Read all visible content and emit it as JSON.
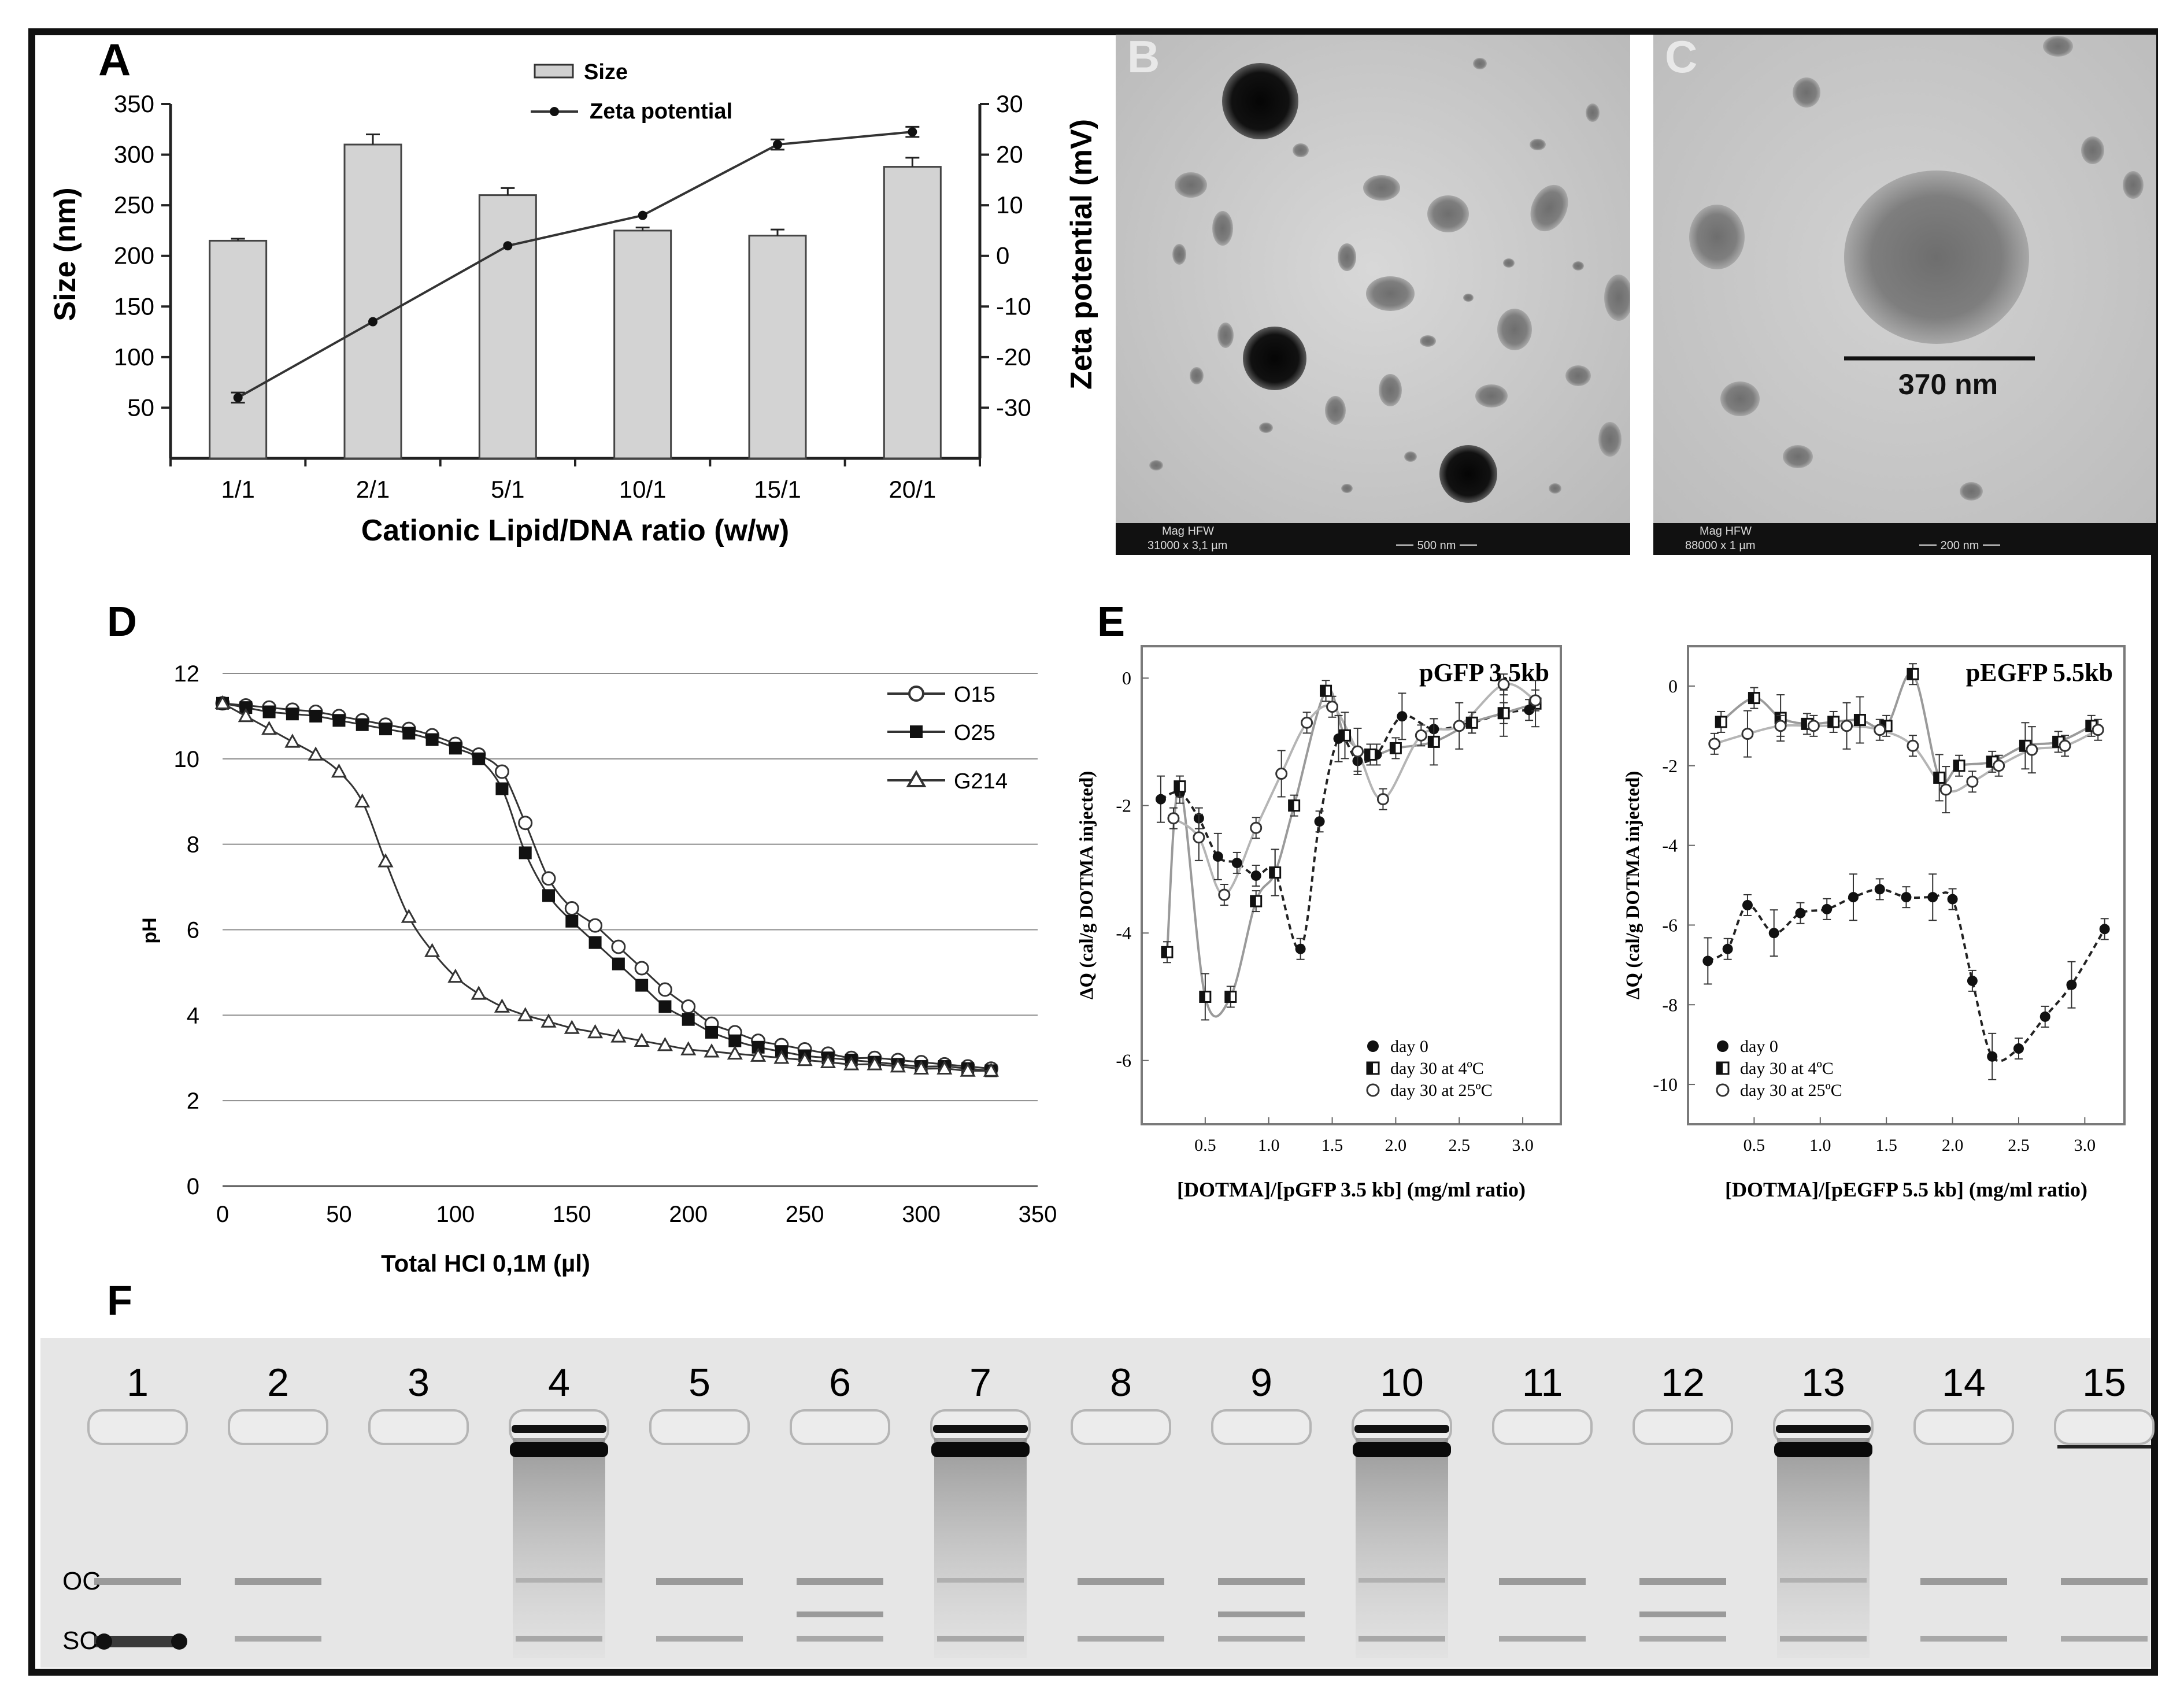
{
  "panel_letters": {
    "a": "A",
    "b": "B",
    "c": "C",
    "d": "D",
    "e": "E",
    "f": "F"
  },
  "chart_data": [
    {
      "id": "A",
      "type": "bar+line",
      "title": "",
      "categories": [
        "1/1",
        "2/1",
        "5/1",
        "10/1",
        "15/1",
        "20/1"
      ],
      "series": [
        {
          "name": "Size",
          "kind": "bar",
          "axis": "left",
          "values": [
            215,
            310,
            260,
            225,
            220,
            288
          ],
          "errors": [
            2,
            10,
            7,
            3,
            6,
            9
          ]
        },
        {
          "name": "Zeta potential",
          "kind": "line",
          "axis": "right",
          "values": [
            -28,
            -13,
            2,
            8,
            22,
            24.5
          ],
          "errors": [
            1,
            0,
            0,
            0,
            1,
            1
          ]
        }
      ],
      "xlabel": "Cationic Lipid/DNA ratio (w/w)",
      "ylabel": "Size (nm)",
      "y2label": "Zeta potential (mV)",
      "ylim": [
        0,
        350
      ],
      "y_ticks": [
        "50",
        "100",
        "150",
        "200",
        "250",
        "300",
        "350"
      ],
      "y2lim": [
        -40,
        30
      ],
      "y2_ticks": [
        "30",
        "20",
        "10",
        "0",
        "-10",
        "-20",
        "-30"
      ],
      "legend": [
        "Size",
        "Zeta potential"
      ]
    },
    {
      "id": "D",
      "type": "line",
      "xlabel": "Total HCl 0,1M (µl)",
      "ylabel": "pH",
      "xlim": [
        0,
        350
      ],
      "ylim": [
        0,
        12
      ],
      "x_ticks": [
        "0",
        "50",
        "100",
        "150",
        "200",
        "250",
        "300",
        "350"
      ],
      "y_ticks": [
        "0",
        "2",
        "4",
        "6",
        "8",
        "10",
        "12"
      ],
      "grid": true,
      "legend_position": "top-right",
      "x": [
        0,
        10,
        20,
        30,
        40,
        50,
        60,
        70,
        80,
        90,
        100,
        110,
        120,
        130,
        140,
        150,
        160,
        170,
        180,
        190,
        200,
        210,
        220,
        230,
        240,
        250,
        260,
        270,
        280,
        290,
        300,
        310,
        320,
        330
      ],
      "series": [
        {
          "name": "O15",
          "marker": "open-circle",
          "values": [
            11.3,
            11.25,
            11.2,
            11.15,
            11.1,
            11.0,
            10.9,
            10.8,
            10.7,
            10.55,
            10.35,
            10.1,
            9.7,
            8.5,
            7.2,
            6.5,
            6.1,
            5.6,
            5.1,
            4.6,
            4.2,
            3.8,
            3.6,
            3.4,
            3.3,
            3.2,
            3.1,
            3.0,
            3.0,
            2.95,
            2.9,
            2.85,
            2.8,
            2.75
          ]
        },
        {
          "name": "O25",
          "marker": "filled-square",
          "values": [
            11.3,
            11.2,
            11.1,
            11.05,
            11.0,
            10.9,
            10.8,
            10.7,
            10.6,
            10.45,
            10.25,
            10.0,
            9.3,
            7.8,
            6.8,
            6.2,
            5.7,
            5.2,
            4.7,
            4.2,
            3.9,
            3.6,
            3.4,
            3.25,
            3.15,
            3.05,
            3.0,
            2.95,
            2.9,
            2.85,
            2.8,
            2.8,
            2.75,
            2.7
          ]
        },
        {
          "name": "G214",
          "marker": "open-triangle",
          "values": [
            11.3,
            11.0,
            10.7,
            10.4,
            10.1,
            9.7,
            9.0,
            7.6,
            6.3,
            5.5,
            4.9,
            4.5,
            4.2,
            4.0,
            3.85,
            3.7,
            3.6,
            3.5,
            3.4,
            3.3,
            3.2,
            3.15,
            3.1,
            3.05,
            3.0,
            2.95,
            2.9,
            2.85,
            2.85,
            2.8,
            2.75,
            2.75,
            2.7,
            2.7
          ]
        }
      ]
    },
    {
      "id": "E1",
      "type": "scatter",
      "title": "pGFP 3.5kb",
      "xlabel": "[DOTMA]/[pGFP 3.5 kb] (mg/ml ratio)",
      "ylabel": "ΔQ  (cal/g DOTMA injected)",
      "xlim": [
        0,
        3.3
      ],
      "ylim": [
        -7,
        0.5
      ],
      "x_ticks": [
        "0.5",
        "1.0",
        "1.5",
        "2.0",
        "2.5",
        "3.0"
      ],
      "y_ticks": [
        "0",
        "-2",
        "-4",
        "-6"
      ],
      "legend": [
        "day 0",
        "day 30  at 4ºC",
        "day 30  at 25ºC"
      ],
      "series": [
        {
          "name": "day 0",
          "marker": "filled-circle",
          "x": [
            0.15,
            0.3,
            0.45,
            0.6,
            0.75,
            0.9,
            1.05,
            1.25,
            1.4,
            1.55,
            1.7,
            1.85,
            2.05,
            2.3,
            2.6,
            2.85,
            3.05
          ],
          "y": [
            -1.9,
            -1.8,
            -2.2,
            -2.8,
            -2.9,
            -3.1,
            -3.05,
            -4.25,
            -2.25,
            -0.95,
            -1.3,
            -1.2,
            -0.6,
            -0.8,
            -0.7,
            -0.55,
            -0.5
          ]
        },
        {
          "name": "day 30  at 4ºC",
          "marker": "half-square",
          "x": [
            0.2,
            0.3,
            0.5,
            0.7,
            0.9,
            1.05,
            1.2,
            1.45,
            1.6,
            1.8,
            2.0,
            2.3,
            2.6,
            2.85,
            3.1
          ],
          "y": [
            -4.3,
            -1.7,
            -5.0,
            -5.0,
            -3.5,
            -3.05,
            -2.0,
            -0.2,
            -0.9,
            -1.2,
            -1.1,
            -1.0,
            -0.7,
            -0.55,
            -0.4
          ]
        },
        {
          "name": "day 30  at 25ºC",
          "marker": "open-circle",
          "x": [
            0.25,
            0.45,
            0.65,
            0.9,
            1.1,
            1.3,
            1.5,
            1.7,
            1.9,
            2.2,
            2.5,
            2.85,
            3.1
          ],
          "y": [
            -2.2,
            -2.5,
            -3.4,
            -2.35,
            -1.5,
            -0.7,
            -0.45,
            -1.15,
            -1.9,
            -0.9,
            -0.75,
            -0.1,
            -0.35
          ]
        }
      ]
    },
    {
      "id": "E2",
      "type": "scatter",
      "title": "pEGFP 5.5kb",
      "xlabel": "[DOTMA]/[pEGFP 5.5 kb] (mg/ml ratio)",
      "ylabel": "ΔQ  (cal/g DOTMA injected)",
      "xlim": [
        0,
        3.3
      ],
      "ylim": [
        -11,
        1
      ],
      "x_ticks": [
        "0.5",
        "1.0",
        "1.5",
        "2.0",
        "2.5",
        "3.0"
      ],
      "y_ticks": [
        "0",
        "-2",
        "-4",
        "-6",
        "-8",
        "-10"
      ],
      "legend": [
        "day 0",
        "day 30  at 4ºC",
        "day 30  at 25ºC"
      ],
      "series": [
        {
          "name": "day 0",
          "marker": "filled-circle",
          "x": [
            0.15,
            0.3,
            0.45,
            0.65,
            0.85,
            1.05,
            1.25,
            1.45,
            1.65,
            1.85,
            2.0,
            2.15,
            2.3,
            2.5,
            2.7,
            2.9,
            3.15
          ],
          "y": [
            -6.9,
            -6.6,
            -5.5,
            -6.2,
            -5.7,
            -5.6,
            -5.3,
            -5.1,
            -5.3,
            -5.3,
            -5.35,
            -7.4,
            -9.3,
            -9.1,
            -8.3,
            -7.5,
            -6.1
          ]
        },
        {
          "name": "day 30  at 4ºC",
          "marker": "half-square",
          "x": [
            0.25,
            0.5,
            0.7,
            0.9,
            1.1,
            1.3,
            1.5,
            1.7,
            1.9,
            2.05,
            2.3,
            2.55,
            2.8,
            3.05
          ],
          "y": [
            -0.9,
            -0.3,
            -0.8,
            -0.95,
            -0.9,
            -0.85,
            -1.0,
            0.3,
            -2.3,
            -2.0,
            -1.9,
            -1.5,
            -1.4,
            -1.0
          ]
        },
        {
          "name": "day 30  at 25ºC",
          "marker": "open-circle",
          "x": [
            0.2,
            0.45,
            0.7,
            0.95,
            1.2,
            1.45,
            1.7,
            1.95,
            2.15,
            2.35,
            2.6,
            2.85,
            3.1
          ],
          "y": [
            -1.45,
            -1.2,
            -1.0,
            -1.0,
            -1.0,
            -1.1,
            -1.5,
            -2.6,
            -2.4,
            -2.0,
            -1.6,
            -1.5,
            -1.1
          ]
        }
      ]
    }
  ],
  "panel_b": {
    "letter": "B",
    "bar_text": "Mag    HFW",
    "bar_value": "31000 x 3,1 µm",
    "scale_label": "500 nm"
  },
  "panel_c": {
    "letter": "C",
    "bar_text": "Mag    HFW",
    "bar_value": "88000 x 1 µm",
    "scale_label": "200 nm",
    "measure": "370 nm"
  },
  "gel": {
    "lanes": [
      "1",
      "2",
      "3",
      "4",
      "5",
      "6",
      "7",
      "8",
      "9",
      "10",
      "11",
      "12",
      "13",
      "14",
      "15"
    ],
    "band_labels": {
      "oc": "OC",
      "sc": "SC"
    }
  }
}
